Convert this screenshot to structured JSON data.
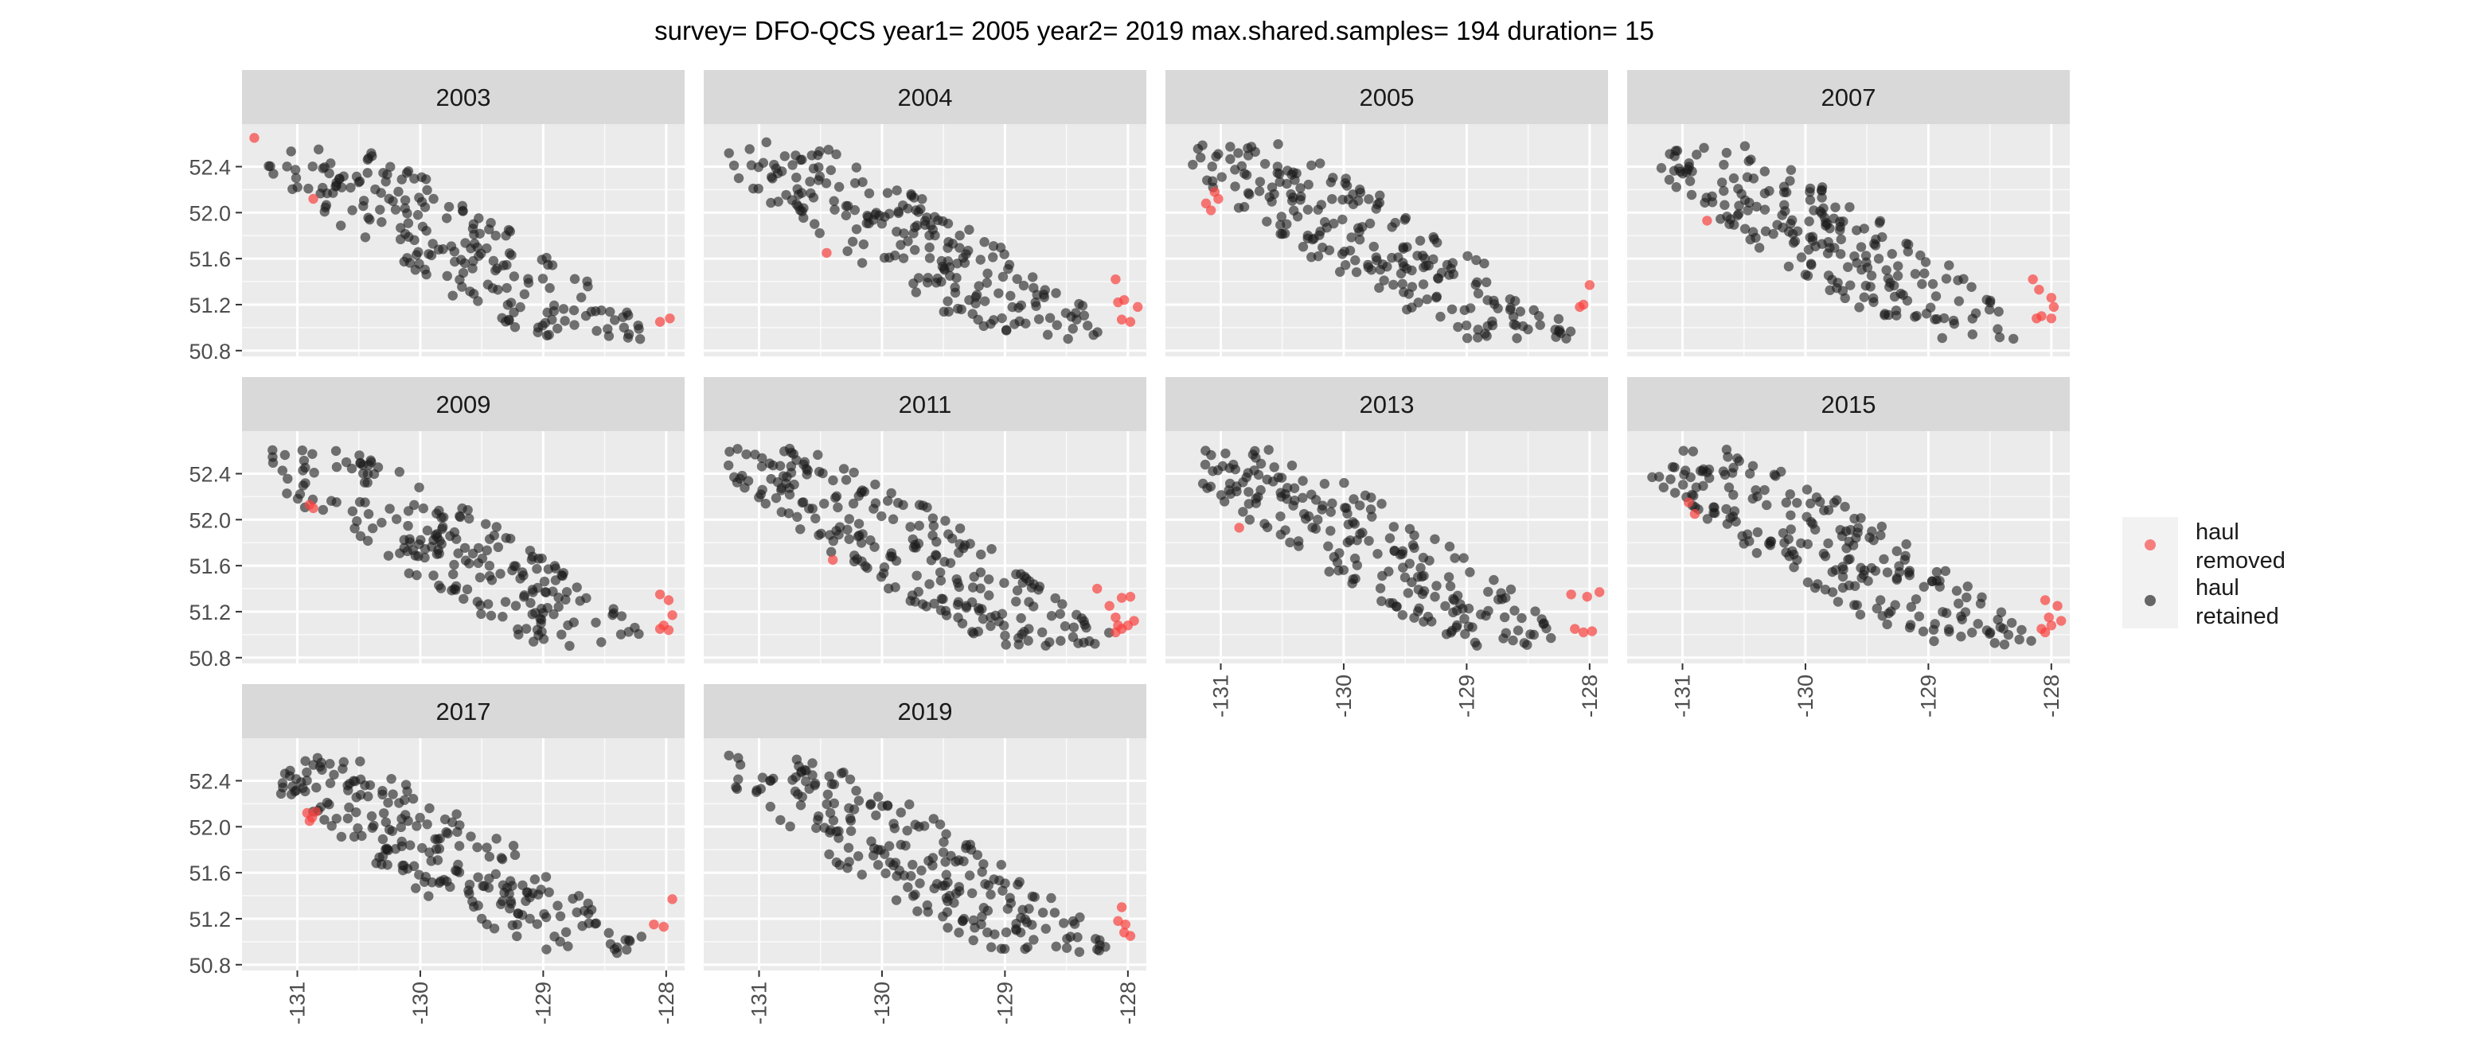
{
  "chart_data": {
    "type": "scatter",
    "layout": "faceted",
    "title": "survey= DFO-QCS year1= 2005 year2= 2019 max.shared.samples= 194 duration= 15",
    "xlabel": "",
    "ylabel": "",
    "xlim": [
      -131.45,
      -127.85
    ],
    "ylim": [
      50.75,
      52.77
    ],
    "x_ticks": [
      -131,
      -130,
      -129,
      -128
    ],
    "x_tick_labels": [
      "-131",
      "-130",
      "-129",
      "-128"
    ],
    "y_ticks": [
      50.8,
      51.2,
      51.6,
      52.0,
      52.4
    ],
    "y_tick_labels": [
      "50.8",
      "51.2",
      "51.6",
      "52.0",
      "52.4"
    ],
    "grid": true,
    "legend": {
      "position": "right",
      "entries": [
        {
          "label": "haul removed",
          "color": "#f8413f"
        },
        {
          "label": "haul retained",
          "color": "#1a1a1a"
        }
      ]
    },
    "colors": {
      "removed": "#f8413f",
      "retained": "#1a1a1a",
      "panel_bg": "#ebebeb",
      "strip_bg": "#d9d9d9",
      "grid": "#ffffff"
    },
    "panels": [
      {
        "label": "2003",
        "n_retained": 200,
        "removed": [
          [
            -131.35,
            52.65
          ],
          [
            -130.87,
            52.12
          ],
          [
            -128.05,
            51.05
          ],
          [
            -127.97,
            51.08
          ]
        ]
      },
      {
        "label": "2004",
        "n_retained": 210,
        "removed": [
          [
            -130.45,
            51.65
          ],
          [
            -128.1,
            51.42
          ],
          [
            -128.08,
            51.22
          ],
          [
            -128.03,
            51.24
          ],
          [
            -127.92,
            51.18
          ],
          [
            -128.05,
            51.07
          ],
          [
            -127.98,
            51.05
          ]
        ]
      },
      {
        "label": "2005",
        "n_retained": 215,
        "removed": [
          [
            -131.05,
            52.18
          ],
          [
            -131.12,
            52.08
          ],
          [
            -131.08,
            52.02
          ],
          [
            -131.02,
            52.12
          ],
          [
            -128.0,
            51.37
          ],
          [
            -128.05,
            51.2
          ],
          [
            -128.08,
            51.18
          ]
        ]
      },
      {
        "label": "2007",
        "n_retained": 205,
        "removed": [
          [
            -130.8,
            51.93
          ],
          [
            -128.15,
            51.42
          ],
          [
            -128.1,
            51.33
          ],
          [
            -128.0,
            51.26
          ],
          [
            -127.98,
            51.18
          ],
          [
            -128.08,
            51.1
          ],
          [
            -128.0,
            51.08
          ],
          [
            -128.12,
            51.08
          ]
        ]
      },
      {
        "label": "2009",
        "n_retained": 205,
        "removed": [
          [
            -130.9,
            52.13
          ],
          [
            -130.87,
            52.1
          ],
          [
            -128.05,
            51.35
          ],
          [
            -127.98,
            51.3
          ],
          [
            -127.95,
            51.17
          ],
          [
            -128.02,
            51.08
          ],
          [
            -127.98,
            51.04
          ],
          [
            -128.05,
            51.05
          ]
        ]
      },
      {
        "label": "2011",
        "n_retained": 230,
        "removed": [
          [
            -130.4,
            51.65
          ],
          [
            -128.25,
            51.4
          ],
          [
            -128.05,
            51.32
          ],
          [
            -128.15,
            51.25
          ],
          [
            -127.98,
            51.33
          ],
          [
            -128.1,
            51.15
          ],
          [
            -127.95,
            51.12
          ],
          [
            -128.08,
            51.08
          ],
          [
            -128.0,
            51.08
          ],
          [
            -128.1,
            51.02
          ],
          [
            -128.05,
            51.05
          ]
        ]
      },
      {
        "label": "2013",
        "n_retained": 205,
        "removed": [
          [
            -130.85,
            51.93
          ],
          [
            -128.15,
            51.35
          ],
          [
            -128.02,
            51.33
          ],
          [
            -127.92,
            51.37
          ],
          [
            -128.12,
            51.05
          ],
          [
            -128.05,
            51.02
          ],
          [
            -127.98,
            51.03
          ]
        ]
      },
      {
        "label": "2015",
        "n_retained": 210,
        "removed": [
          [
            -130.95,
            52.15
          ],
          [
            -130.9,
            52.05
          ],
          [
            -128.05,
            51.3
          ],
          [
            -127.95,
            51.25
          ],
          [
            -128.02,
            51.15
          ],
          [
            -127.92,
            51.12
          ],
          [
            -128.08,
            51.05
          ],
          [
            -128.05,
            51.02
          ],
          [
            -128.0,
            51.08
          ]
        ]
      },
      {
        "label": "2017",
        "n_retained": 215,
        "removed": [
          [
            -130.92,
            52.12
          ],
          [
            -130.88,
            52.08
          ],
          [
            -130.85,
            52.13
          ],
          [
            -130.9,
            52.05
          ],
          [
            -128.1,
            51.15
          ],
          [
            -128.02,
            51.13
          ],
          [
            -127.95,
            51.37
          ]
        ]
      },
      {
        "label": "2019",
        "n_retained": 215,
        "removed": [
          [
            -128.05,
            51.3
          ],
          [
            -128.08,
            51.18
          ],
          [
            -128.02,
            51.15
          ],
          [
            -128.03,
            51.08
          ],
          [
            -127.98,
            51.05
          ]
        ]
      }
    ]
  }
}
